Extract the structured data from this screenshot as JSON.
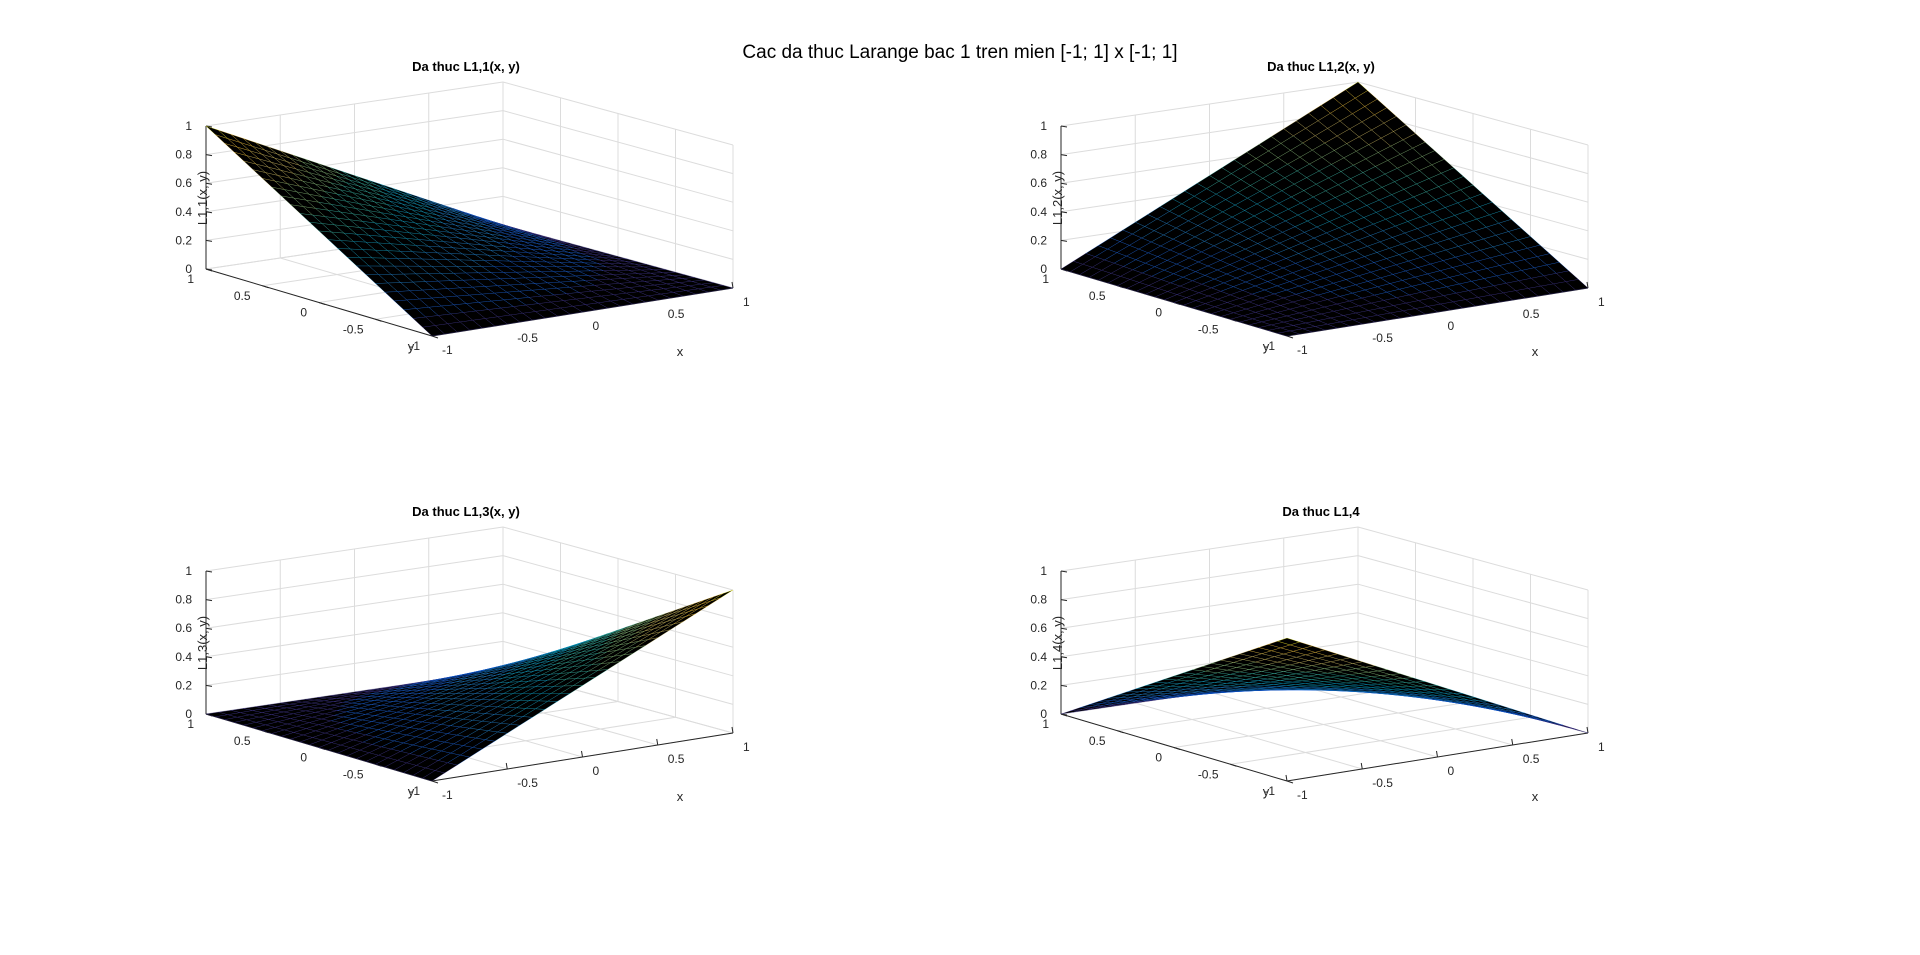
{
  "figure": {
    "title": "Cac da thuc Larange bac 1 tren mien [-1; 1] x [-1; 1]",
    "background": "#ffffff"
  },
  "chart_data": [
    {
      "type": "surface",
      "title": "Da thuc L1,1(x, y)",
      "xlabel": "x",
      "ylabel": "y",
      "zlabel": "L1,1(x, y)",
      "xlim": [
        -1,
        1
      ],
      "ylim": [
        -1,
        1
      ],
      "zlim": [
        0,
        1
      ],
      "xticks": [
        "-1",
        "-0.5",
        "0",
        "0.5",
        "1"
      ],
      "yticks": [
        "-1",
        "-0.5",
        "0",
        "0.5",
        "1"
      ],
      "zticks": [
        "0",
        "0.2",
        "0.4",
        "0.6",
        "0.8",
        "1"
      ],
      "corners": [
        {
          "x": -1,
          "y": -1,
          "z": 0
        },
        {
          "x": 1,
          "y": -1,
          "z": 0
        },
        {
          "x": 1,
          "y": 1,
          "z": 0
        },
        {
          "x": -1,
          "y": 1,
          "z": 1
        }
      ],
      "colormap": [
        "#352a87",
        "#0f5cdd",
        "#1481d6",
        "#06a4ca",
        "#2eb7a4",
        "#87bf77",
        "#d1bb59",
        "#fec832",
        "#f9fb0e"
      ],
      "face_color": "#000000"
    },
    {
      "type": "surface",
      "title": "Da thuc L1,2(x, y)",
      "xlabel": "x",
      "ylabel": "y",
      "zlabel": "L1,2(x, y)",
      "xlim": [
        -1,
        1
      ],
      "ylim": [
        -1,
        1
      ],
      "zlim": [
        0,
        1
      ],
      "xticks": [
        "-1",
        "-0.5",
        "0",
        "0.5",
        "1"
      ],
      "yticks": [
        "-1",
        "-0.5",
        "0",
        "0.5",
        "1"
      ],
      "zticks": [
        "0",
        "0.2",
        "0.4",
        "0.6",
        "0.8",
        "1"
      ],
      "corners": [
        {
          "x": -1,
          "y": -1,
          "z": 0
        },
        {
          "x": 1,
          "y": -1,
          "z": 0
        },
        {
          "x": 1,
          "y": 1,
          "z": 1
        },
        {
          "x": -1,
          "y": 1,
          "z": 0
        }
      ],
      "colormap": [
        "#352a87",
        "#0f5cdd",
        "#1481d6",
        "#06a4ca",
        "#2eb7a4",
        "#87bf77",
        "#d1bb59",
        "#fec832",
        "#f9fb0e"
      ],
      "face_color": "#000000"
    },
    {
      "type": "surface",
      "title": "Da thuc L1,3(x, y)",
      "xlabel": "x",
      "ylabel": "y",
      "zlabel": "L1,3(x, y)",
      "xlim": [
        -1,
        1
      ],
      "ylim": [
        -1,
        1
      ],
      "zlim": [
        0,
        1
      ],
      "xticks": [
        "-1",
        "-0.5",
        "0",
        "0.5",
        "1"
      ],
      "yticks": [
        "-1",
        "-0.5",
        "0",
        "0.5",
        "1"
      ],
      "zticks": [
        "0",
        "0.2",
        "0.4",
        "0.6",
        "0.8",
        "1"
      ],
      "corners": [
        {
          "x": -1,
          "y": -1,
          "z": 0
        },
        {
          "x": 1,
          "y": -1,
          "z": 1
        },
        {
          "x": 1,
          "y": 1,
          "z": 0
        },
        {
          "x": -1,
          "y": 1,
          "z": 0
        }
      ],
      "colormap": [
        "#352a87",
        "#0f5cdd",
        "#1481d6",
        "#06a4ca",
        "#2eb7a4",
        "#87bf77",
        "#d1bb59",
        "#fec832",
        "#f9fb0e"
      ],
      "face_color": "#000000"
    },
    {
      "type": "surface",
      "title": "Da thuc L1,4",
      "xlabel": "x",
      "ylabel": "y",
      "zlabel": "L1,4(x, y)",
      "xlim": [
        -1,
        1
      ],
      "ylim": [
        -1,
        1
      ],
      "zlim": [
        0,
        1
      ],
      "xticks": [
        "-1",
        "-0.5",
        "0",
        "0.5",
        "1"
      ],
      "yticks": [
        "-1",
        "-0.5",
        "0",
        "0.5",
        "1"
      ],
      "zticks": [
        "0",
        "0.2",
        "0.4",
        "0.6",
        "0.8",
        "1"
      ],
      "corners": [
        {
          "x": -1,
          "y": -1,
          "z": 1
        },
        {
          "x": 1,
          "y": -1,
          "z": 0
        },
        {
          "x": 1,
          "y": 1,
          "z": 0
        },
        {
          "x": -1,
          "y": 1,
          "z": 0
        }
      ],
      "colormap": [
        "#352a87",
        "#0f5cdd",
        "#1481d6",
        "#06a4ca",
        "#2eb7a4",
        "#87bf77",
        "#d1bb59",
        "#fec832",
        "#f9fb0e"
      ],
      "face_color": "#000000"
    }
  ]
}
